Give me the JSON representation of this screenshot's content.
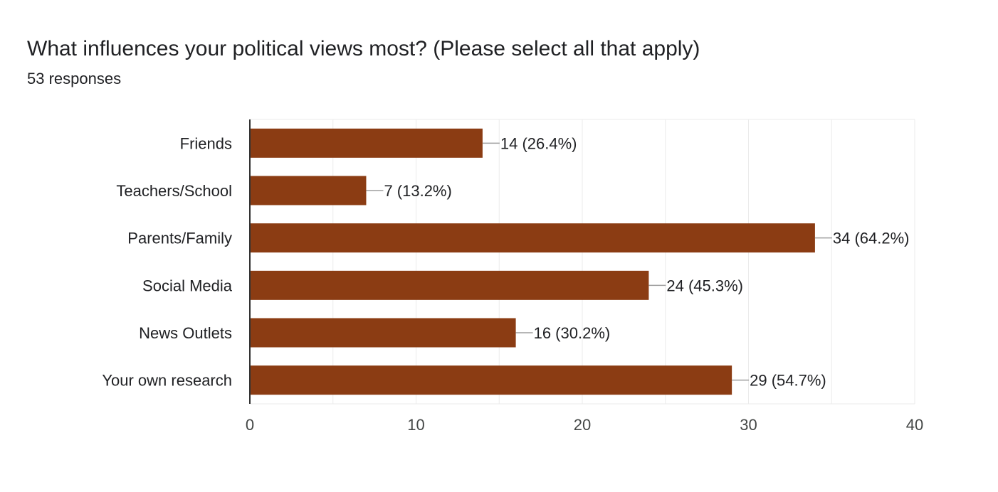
{
  "header": {
    "question": "What influences your political views most? (Please select all that apply)",
    "responses": "53 responses"
  },
  "chart_data": {
    "type": "bar",
    "orientation": "horizontal",
    "categories": [
      "Friends",
      "Teachers/School",
      "Parents/Family",
      "Social Media",
      "News Outlets",
      "Your own research"
    ],
    "values": [
      14,
      7,
      34,
      24,
      16,
      29
    ],
    "value_labels": [
      "14 (26.4%)",
      "7 (13.2%)",
      "34 (64.2%)",
      "24 (45.3%)",
      "16 (30.2%)",
      "29 (54.7%)"
    ],
    "xlim": [
      0,
      40
    ],
    "x_ticks": [
      0,
      10,
      20,
      30,
      40
    ],
    "grid": true,
    "bar_color": "#8b3c13",
    "title": "What influences your political views most? (Please select all that apply)",
    "subtitle": "53 responses",
    "xlabel": "",
    "ylabel": ""
  }
}
